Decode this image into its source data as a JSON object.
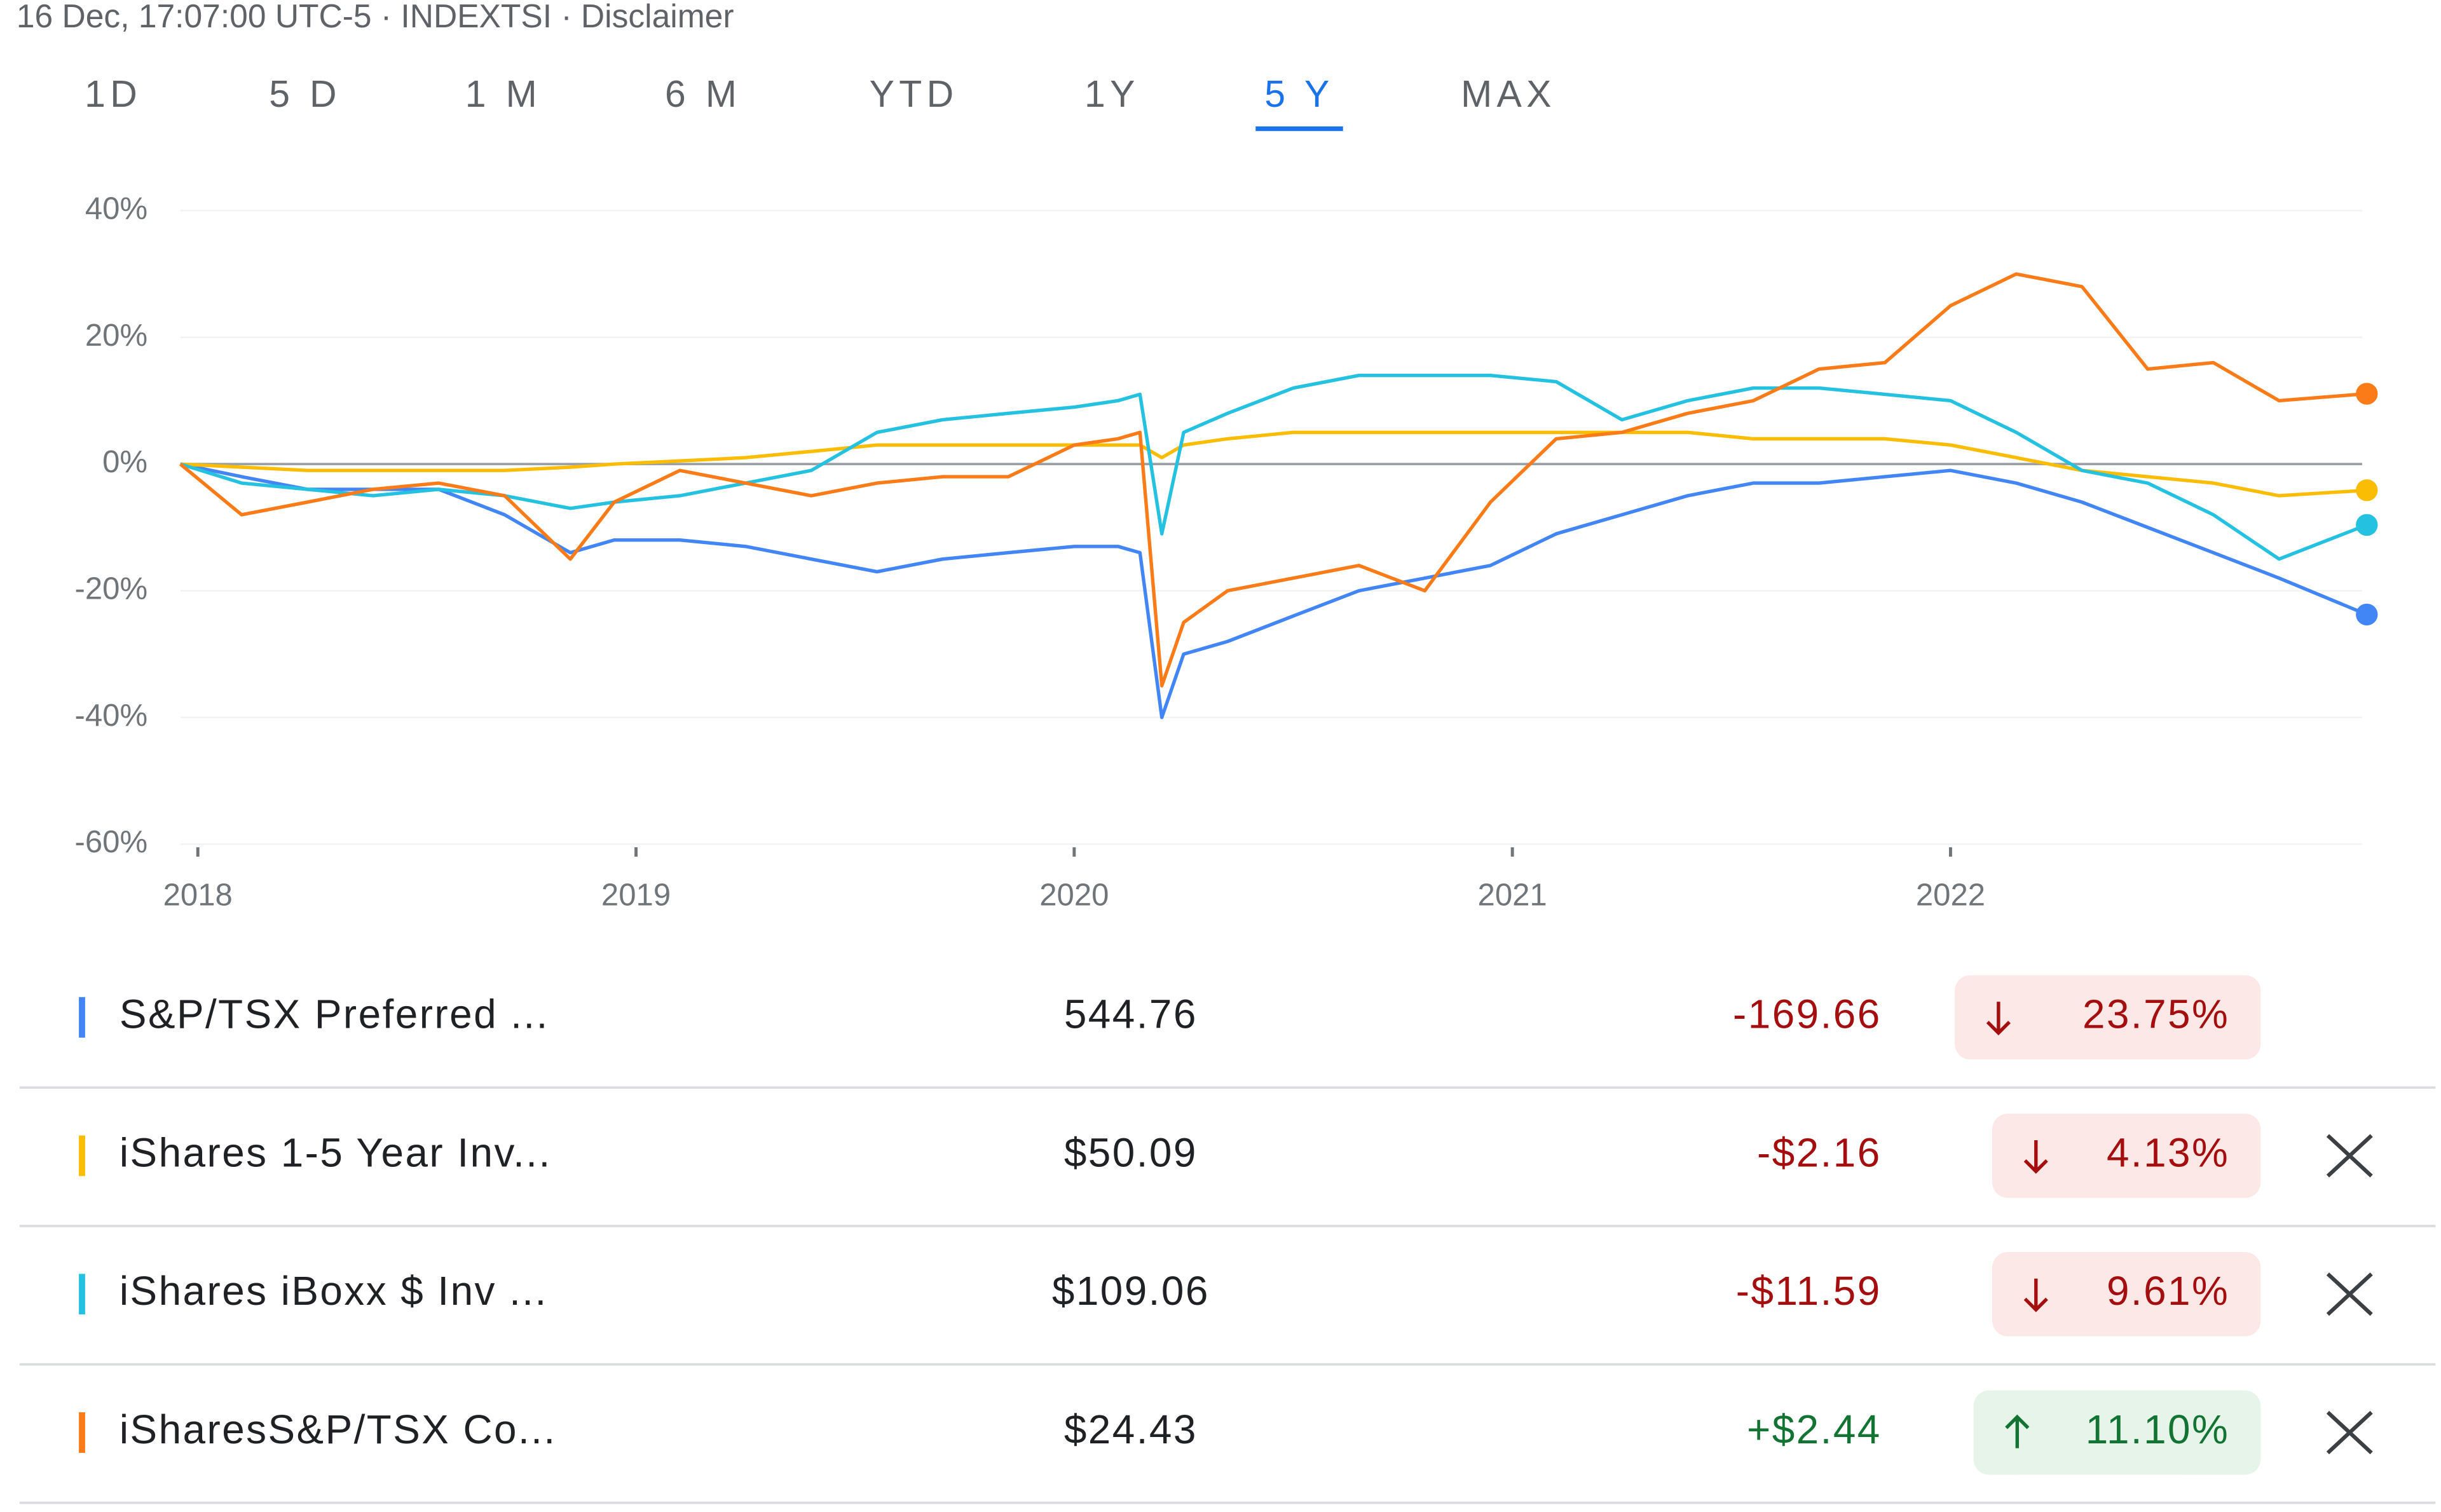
{
  "header": "16 Dec, 17:07:00 UTC-5 · INDEXTSI · Disclaimer",
  "tabs": [
    "1D",
    "5 D",
    "1 M",
    "6 M",
    "YTD",
    "1Y",
    "5 Y",
    "MAX"
  ],
  "active_tab": 6,
  "chart_data": {
    "type": "line",
    "x": [
      2017.96,
      2018.1,
      2018.25,
      2018.4,
      2018.55,
      2018.7,
      2018.85,
      2018.95,
      2019.1,
      2019.25,
      2019.4,
      2019.55,
      2019.7,
      2019.85,
      2020.0,
      2020.1,
      2020.15,
      2020.2,
      2020.25,
      2020.35,
      2020.5,
      2020.65,
      2020.8,
      2020.95,
      2021.1,
      2021.25,
      2021.4,
      2021.55,
      2021.7,
      2021.85,
      2022.0,
      2022.15,
      2022.3,
      2022.45,
      2022.6,
      2022.75,
      2022.95
    ],
    "xlim": [
      2017.96,
      2022.95
    ],
    "xticks": [
      2018,
      2019,
      2020,
      2021,
      2022
    ],
    "ylim": [
      -60,
      40
    ],
    "yticks": [
      {
        "value": 40,
        "label": "40%"
      },
      {
        "value": 20,
        "label": "20%"
      },
      {
        "value": 0,
        "label": "0%"
      },
      {
        "value": -20,
        "label": "-20%"
      },
      {
        "value": -40,
        "label": "-40%"
      },
      {
        "value": -60,
        "label": "-60%"
      }
    ],
    "grid": true,
    "series": [
      {
        "name": "S&P/TSX Preferred ...",
        "color": "#4285f4",
        "values": [
          0,
          -2,
          -4,
          -4,
          -4,
          -8,
          -14,
          -12,
          -12,
          -13,
          -15,
          -17,
          -15,
          -14,
          -13,
          -13,
          -14,
          -40,
          -30,
          -28,
          -24,
          -20,
          -18,
          -16,
          -11,
          -8,
          -5,
          -3,
          -3,
          -2,
          -1,
          -3,
          -6,
          -10,
          -14,
          -18,
          -23.75
        ]
      },
      {
        "name": "iShares 1-5 Year Inv...",
        "color": "#fbbc04",
        "values": [
          0,
          -0.5,
          -1,
          -1,
          -1,
          -1,
          -0.5,
          0,
          0.5,
          1,
          2,
          3,
          3,
          3,
          3,
          3,
          3,
          1,
          3,
          4,
          5,
          5,
          5,
          5,
          5,
          5,
          5,
          4,
          4,
          4,
          3,
          1,
          -1,
          -2,
          -3,
          -5,
          -4.13
        ]
      },
      {
        "name": "iShares iBoxx $ Inv ...",
        "color": "#24c1e0",
        "values": [
          0,
          -3,
          -4,
          -5,
          -4,
          -5,
          -7,
          -6,
          -5,
          -3,
          -1,
          5,
          7,
          8,
          9,
          10,
          11,
          -11,
          5,
          8,
          12,
          14,
          14,
          14,
          13,
          7,
          10,
          12,
          12,
          11,
          10,
          5,
          -1,
          -3,
          -8,
          -15,
          -9.61
        ]
      },
      {
        "name": "iSharesS&P/TSX Co...",
        "color": "#fa7b17",
        "values": [
          0,
          -8,
          -6,
          -4,
          -3,
          -5,
          -15,
          -6,
          -1,
          -3,
          -5,
          -3,
          -2,
          -2,
          3,
          4,
          5,
          -35,
          -25,
          -20,
          -18,
          -16,
          -20,
          -6,
          4,
          5,
          8,
          10,
          15,
          16,
          25,
          30,
          28,
          15,
          16,
          10,
          11.1
        ]
      }
    ]
  },
  "rows": [
    {
      "price": "544.76",
      "change": "-169.66",
      "percent": "23.75%",
      "trend": "down",
      "removable": false
    },
    {
      "price": "$50.09",
      "change": "-$2.16",
      "percent": "4.13%",
      "trend": "down",
      "removable": true
    },
    {
      "price": "$109.06",
      "change": "-$11.59",
      "percent": "9.61%",
      "trend": "down",
      "removable": true
    },
    {
      "price": "$24.43",
      "change": "+$2.44",
      "percent": "11.10%",
      "trend": "up",
      "removable": true
    }
  ]
}
